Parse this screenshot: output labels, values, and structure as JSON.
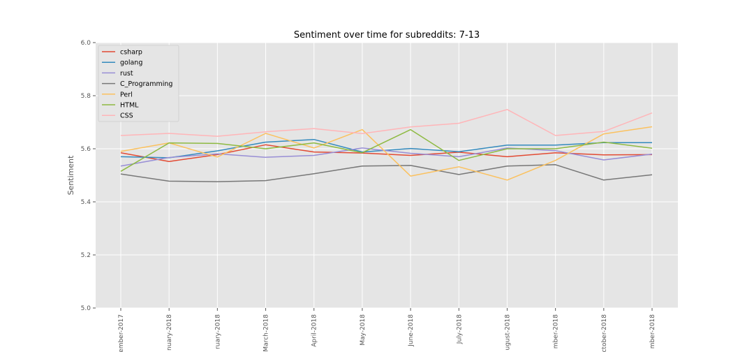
{
  "chart_data": {
    "type": "line",
    "title": "Sentiment over time for subreddits: 7-13",
    "xlabel": "",
    "ylabel": "Sentiment",
    "ylim": [
      5.0,
      6.0
    ],
    "yticks": [
      "5.0",
      "5.2",
      "5.4",
      "5.6",
      "5.8",
      "6.0"
    ],
    "categories": [
      "ember-2017",
      "nuary-2018",
      "ruary-2018",
      "March-2018",
      "April-2018",
      "May-2018",
      "June-2018",
      "July-2018",
      "ugust-2018",
      "mber-2018",
      "ctober-2018",
      "mber-2018"
    ],
    "grid": true,
    "legend_position": "top-left",
    "series": [
      {
        "name": "csharp",
        "color": "#e24a33",
        "values": [
          5.585,
          5.552,
          5.578,
          5.615,
          5.588,
          5.584,
          5.575,
          5.587,
          5.57,
          5.585,
          5.577,
          5.578
        ]
      },
      {
        "name": "golang",
        "color": "#348abd",
        "values": [
          5.57,
          5.566,
          5.592,
          5.625,
          5.635,
          5.588,
          5.601,
          5.589,
          5.614,
          5.614,
          5.623,
          5.623
        ]
      },
      {
        "name": "rust",
        "color": "#988ed5",
        "values": [
          5.535,
          5.567,
          5.581,
          5.568,
          5.575,
          5.603,
          5.583,
          5.57,
          5.603,
          5.593,
          5.558,
          5.58
        ]
      },
      {
        "name": "C_Programming",
        "color": "#777777",
        "values": [
          5.505,
          5.478,
          5.476,
          5.48,
          5.506,
          5.535,
          5.537,
          5.503,
          5.535,
          5.54,
          5.482,
          5.502
        ]
      },
      {
        "name": "Perl",
        "color": "#fbc15e",
        "values": [
          5.59,
          5.622,
          5.569,
          5.658,
          5.603,
          5.672,
          5.497,
          5.532,
          5.482,
          5.556,
          5.656,
          5.683
        ]
      },
      {
        "name": "HTML",
        "color": "#8eba42",
        "values": [
          5.515,
          5.622,
          5.62,
          5.6,
          5.622,
          5.585,
          5.672,
          5.556,
          5.6,
          5.6,
          5.625,
          5.602
        ]
      },
      {
        "name": "CSS",
        "color": "#ffb5b8",
        "values": [
          5.65,
          5.658,
          5.647,
          5.664,
          5.676,
          5.657,
          5.682,
          5.696,
          5.748,
          5.65,
          5.665,
          5.735
        ]
      }
    ]
  }
}
